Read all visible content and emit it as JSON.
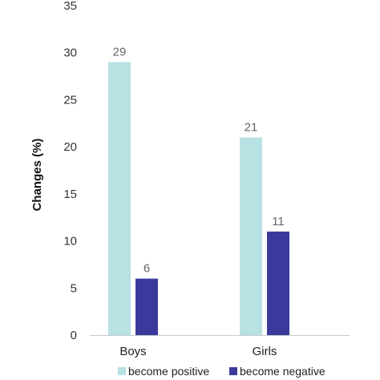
{
  "chart_data": {
    "type": "bar",
    "title": "",
    "xlabel": "",
    "ylabel": "Changes (%)",
    "ylim": [
      0,
      35
    ],
    "yticks": [
      0,
      5,
      10,
      15,
      20,
      25,
      30,
      35
    ],
    "categories": [
      "Boys",
      "Girls"
    ],
    "series": [
      {
        "name": "become positive",
        "values": [
          29,
          21
        ],
        "color": "#b8e1e4"
      },
      {
        "name": "become negative",
        "values": [
          6,
          11
        ],
        "color": "#3b3a9c"
      }
    ],
    "data_labels": true,
    "grid": false,
    "legend": "bottom"
  }
}
